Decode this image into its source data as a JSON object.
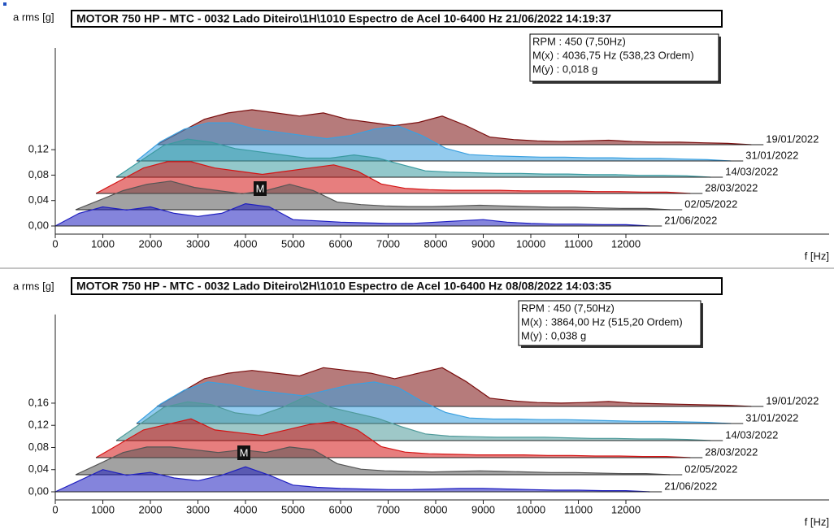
{
  "chart_data": [
    {
      "type": "waterfall",
      "title": "MOTOR 750 HP - MTC - 0032 Lado Diteiro\\1H\\1010 Espectro de Acel 10-6400 Hz 21/06/2022 14:19:37",
      "y_label": "a rms [g]",
      "x_label": "f [Hz]",
      "info": [
        "RPM : 450 (7,50Hz)",
        "M(x) : 4036,75 Hz (538,23 Ordem)",
        "M(y) : 0,018 g"
      ],
      "marker": "M",
      "xlim": [
        0,
        16000
      ],
      "ylim": [
        0,
        0.28
      ],
      "xticks": [
        0,
        1000,
        2000,
        3000,
        4000,
        5000,
        6000,
        7000,
        8000,
        9000,
        10000,
        11000,
        12000
      ],
      "yticks": [
        {
          "value": 0,
          "label": "0,00"
        },
        {
          "value": 0.04,
          "label": "0,04"
        },
        {
          "value": 0.08,
          "label": "0,08"
        },
        {
          "value": 0.12,
          "label": "0,12"
        }
      ],
      "x": [
        0,
        500,
        1000,
        1500,
        2000,
        2500,
        3000,
        3500,
        4000,
        4500,
        5000,
        5500,
        6000,
        6500,
        7000,
        7500,
        8000,
        8500,
        9000,
        9500,
        10000,
        10500,
        11000,
        11500,
        12000,
        12500
      ],
      "series": [
        {
          "name": "21/06/2022",
          "color": "#1f1fc0",
          "values": [
            0,
            0.02,
            0.03,
            0.025,
            0.03,
            0.02,
            0.015,
            0.02,
            0.035,
            0.03,
            0.01,
            0.008,
            0.006,
            0.005,
            0.004,
            0.004,
            0.006,
            0.008,
            0.01,
            0.006,
            0.004,
            0.003,
            0.003,
            0.002,
            0.002,
            0
          ]
        },
        {
          "name": "02/05/2022",
          "color": "#555555",
          "values": [
            0,
            0.015,
            0.03,
            0.04,
            0.045,
            0.035,
            0.03,
            0.025,
            0.03,
            0.04,
            0.03,
            0.012,
            0.008,
            0.006,
            0.005,
            0.005,
            0.006,
            0.007,
            0.006,
            0.005,
            0.004,
            0.004,
            0.003,
            0.002,
            0.002,
            0
          ]
        },
        {
          "name": "28/03/2022",
          "color": "#d41414",
          "values": [
            0,
            0.02,
            0.04,
            0.05,
            0.05,
            0.04,
            0.035,
            0.03,
            0.035,
            0.04,
            0.045,
            0.035,
            0.015,
            0.008,
            0.006,
            0.005,
            0.005,
            0.005,
            0.004,
            0.004,
            0.004,
            0.003,
            0.003,
            0.002,
            0.002,
            0
          ]
        },
        {
          "name": "14/03/2022",
          "color": "#3a9aa0",
          "values": [
            0,
            0.025,
            0.05,
            0.06,
            0.055,
            0.045,
            0.04,
            0.035,
            0.03,
            0.03,
            0.035,
            0.03,
            0.02,
            0.01,
            0.008,
            0.007,
            0.006,
            0.006,
            0.005,
            0.005,
            0.004,
            0.004,
            0.003,
            0.003,
            0.002,
            0
          ]
        },
        {
          "name": "31/01/2022",
          "color": "#3aa0e0",
          "values": [
            0,
            0.03,
            0.05,
            0.06,
            0.06,
            0.05,
            0.045,
            0.04,
            0.035,
            0.04,
            0.05,
            0.055,
            0.04,
            0.02,
            0.01,
            0.008,
            0.007,
            0.006,
            0.006,
            0.005,
            0.005,
            0.004,
            0.004,
            0.003,
            0.002,
            0
          ]
        },
        {
          "name": "19/01/2022",
          "color": "#7a0e0e",
          "values": [
            0,
            0.02,
            0.04,
            0.05,
            0.055,
            0.05,
            0.045,
            0.05,
            0.04,
            0.035,
            0.03,
            0.035,
            0.045,
            0.03,
            0.012,
            0.008,
            0.006,
            0.005,
            0.006,
            0.007,
            0.005,
            0.004,
            0.004,
            0.003,
            0.002,
            0
          ]
        }
      ]
    },
    {
      "type": "waterfall",
      "title": "MOTOR 750 HP - MTC - 0032 Lado Diteiro\\2H\\1010 Espectro de Acel 10-6400 Hz 08/08/2022 14:03:35",
      "y_label": "a rms [g]",
      "x_label": "f [Hz]",
      "info": [
        "RPM : 450 (7,50Hz)",
        "M(x) : 3864,00 Hz (515,20 Ordem)",
        "M(y) : 0,038 g"
      ],
      "marker": "M",
      "xlim": [
        0,
        16000
      ],
      "ylim": [
        0,
        0.32
      ],
      "xticks": [
        0,
        1000,
        2000,
        3000,
        4000,
        5000,
        6000,
        7000,
        8000,
        9000,
        10000,
        11000,
        12000
      ],
      "yticks": [
        {
          "value": 0,
          "label": "0,00"
        },
        {
          "value": 0.04,
          "label": "0,04"
        },
        {
          "value": 0.08,
          "label": "0,08"
        },
        {
          "value": 0.12,
          "label": "0,12"
        },
        {
          "value": 0.16,
          "label": "0,16"
        }
      ],
      "x": [
        0,
        500,
        1000,
        1500,
        2000,
        2500,
        3000,
        3500,
        4000,
        4500,
        5000,
        5500,
        6000,
        6500,
        7000,
        7500,
        8000,
        8500,
        9000,
        9500,
        10000,
        10500,
        11000,
        11500,
        12000,
        12500
      ],
      "series": [
        {
          "name": "21/06/2022",
          "color": "#1f1fc0",
          "values": [
            0,
            0.02,
            0.04,
            0.03,
            0.035,
            0.025,
            0.02,
            0.03,
            0.045,
            0.03,
            0.012,
            0.008,
            0.006,
            0.005,
            0.004,
            0.004,
            0.005,
            0.006,
            0.006,
            0.005,
            0.004,
            0.003,
            0.003,
            0.002,
            0.002,
            0
          ]
        },
        {
          "name": "02/05/2022",
          "color": "#555555",
          "values": [
            0,
            0.02,
            0.04,
            0.05,
            0.05,
            0.045,
            0.04,
            0.045,
            0.04,
            0.05,
            0.045,
            0.02,
            0.01,
            0.007,
            0.006,
            0.005,
            0.006,
            0.007,
            0.006,
            0.005,
            0.004,
            0.004,
            0.003,
            0.002,
            0.002,
            0
          ]
        },
        {
          "name": "28/03/2022",
          "color": "#d41414",
          "values": [
            0,
            0.025,
            0.05,
            0.06,
            0.07,
            0.05,
            0.045,
            0.04,
            0.05,
            0.06,
            0.065,
            0.05,
            0.02,
            0.01,
            0.007,
            0.006,
            0.005,
            0.005,
            0.005,
            0.004,
            0.004,
            0.003,
            0.003,
            0.002,
            0.002,
            0
          ]
        },
        {
          "name": "14/03/2022",
          "color": "#4f9a9a",
          "values": [
            0,
            0.03,
            0.06,
            0.07,
            0.065,
            0.05,
            0.045,
            0.06,
            0.08,
            0.06,
            0.05,
            0.04,
            0.025,
            0.012,
            0.008,
            0.007,
            0.006,
            0.006,
            0.006,
            0.005,
            0.004,
            0.004,
            0.003,
            0.003,
            0.002,
            0
          ]
        },
        {
          "name": "31/01/2022",
          "color": "#3aa0e0",
          "values": [
            0,
            0.035,
            0.06,
            0.075,
            0.07,
            0.06,
            0.055,
            0.05,
            0.06,
            0.07,
            0.075,
            0.065,
            0.04,
            0.02,
            0.01,
            0.008,
            0.008,
            0.007,
            0.007,
            0.006,
            0.005,
            0.004,
            0.004,
            0.003,
            0.002,
            0
          ]
        },
        {
          "name": "19/01/2022",
          "color": "#7a0e0e",
          "values": [
            0,
            0.025,
            0.05,
            0.06,
            0.065,
            0.06,
            0.055,
            0.07,
            0.065,
            0.06,
            0.05,
            0.06,
            0.07,
            0.045,
            0.015,
            0.01,
            0.007,
            0.006,
            0.007,
            0.009,
            0.006,
            0.005,
            0.004,
            0.003,
            0.002,
            0
          ]
        }
      ]
    }
  ]
}
